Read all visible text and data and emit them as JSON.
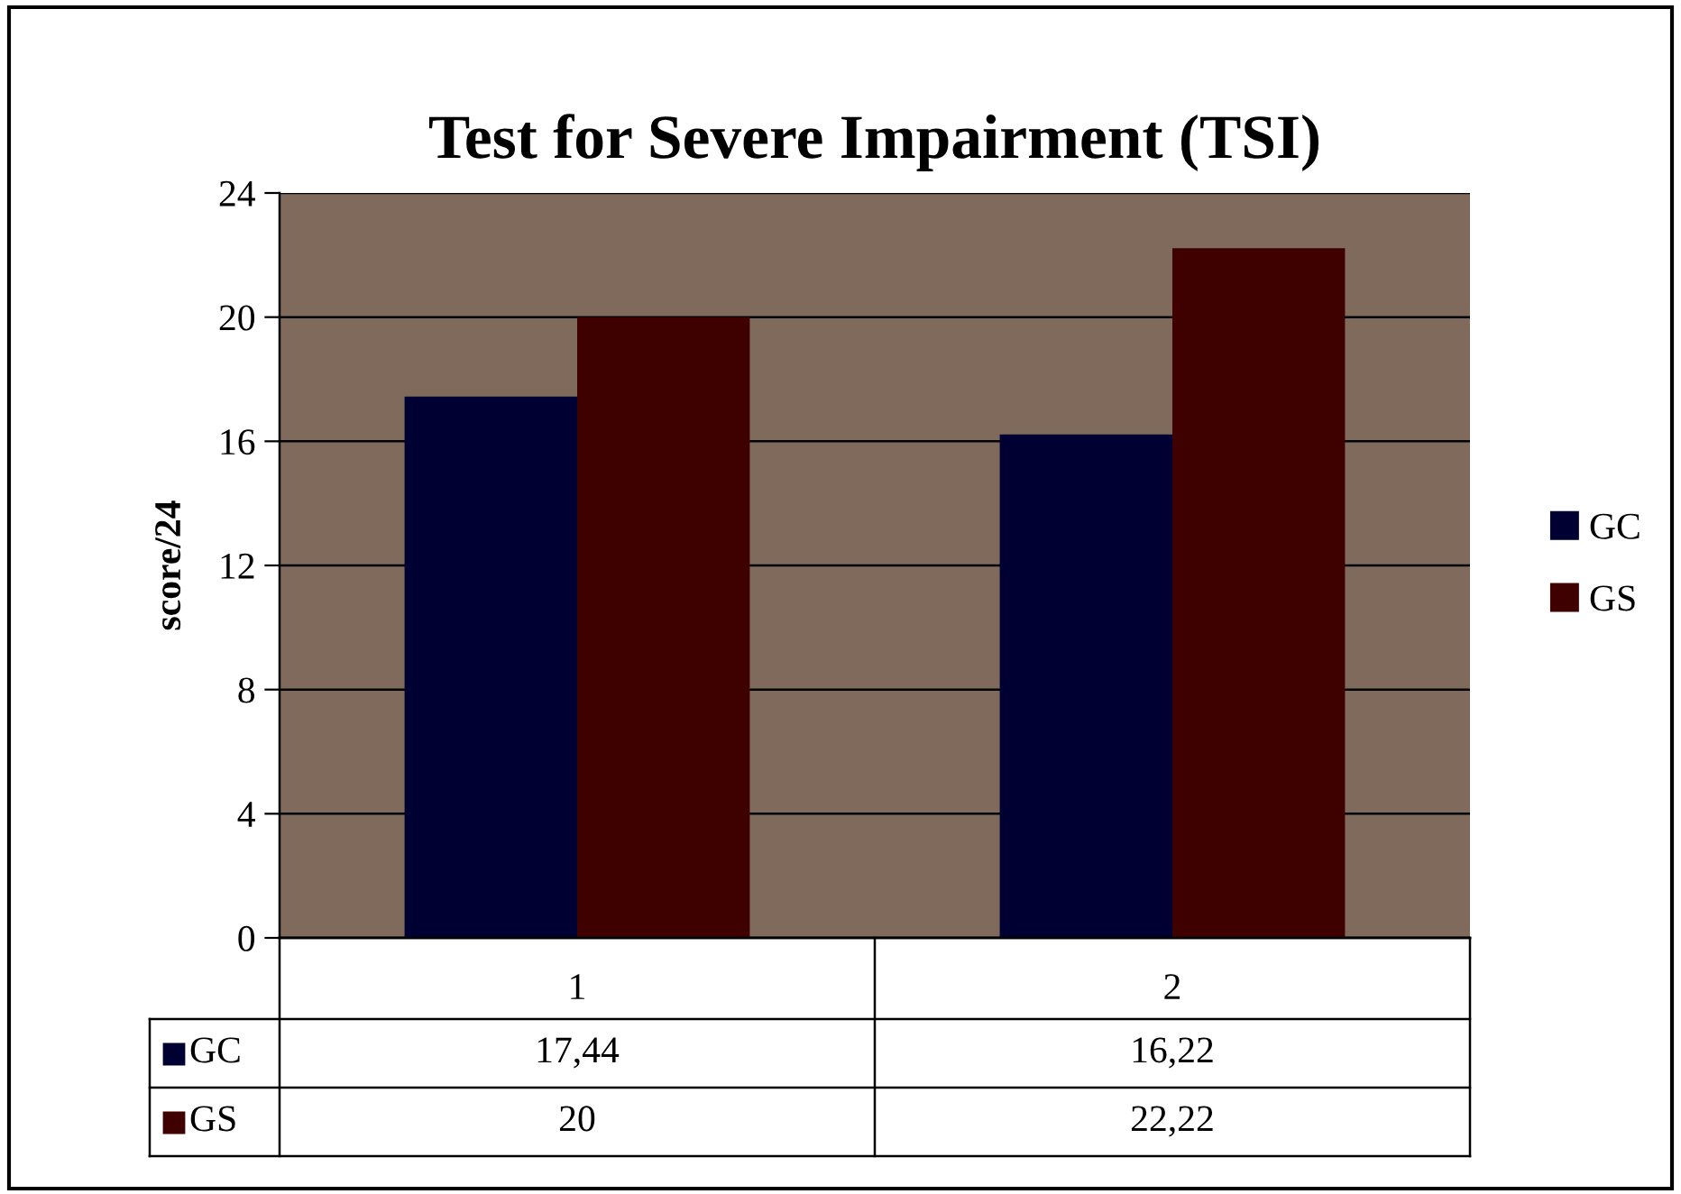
{
  "chart_data": {
    "type": "bar",
    "title": "Test for Severe Impairment (TSI)",
    "ylabel": "score/24",
    "categories": [
      "1",
      "2"
    ],
    "series": [
      {
        "name": "GC",
        "color": "#000033",
        "values": [
          17.44,
          16.22
        ],
        "value_labels": [
          "17,44",
          "16,22"
        ]
      },
      {
        "name": "GS",
        "color": "#3f0000",
        "values": [
          20,
          22.22
        ],
        "value_labels": [
          "20",
          "22,22"
        ]
      }
    ],
    "ylim": [
      0,
      24
    ],
    "yticks": [
      0,
      4,
      8,
      12,
      16,
      20,
      24
    ],
    "grid": "y",
    "legend": "right"
  }
}
